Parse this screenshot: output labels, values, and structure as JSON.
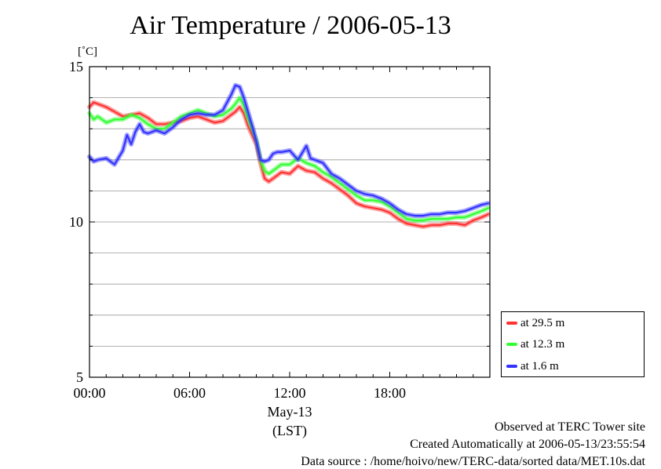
{
  "chart_data": {
    "type": "line",
    "title": "Air Temperature / 2006-05-13",
    "ylabel": "[˚C]",
    "xlabel": "(LST)",
    "date_label": "May-13",
    "ylim": [
      5,
      15
    ],
    "xlim_hours": [
      0,
      24
    ],
    "y_ticks": [
      "5",
      "10",
      "15"
    ],
    "x_ticks": [
      "00:00",
      "06:00",
      "12:00",
      "18:00"
    ],
    "grid": true,
    "legend_position": "lower-right-outside",
    "series": [
      {
        "name": "at 29.5 m",
        "color": "#ff3333",
        "x": [
          0,
          0.25,
          0.5,
          1.0,
          1.5,
          2.0,
          2.5,
          3.0,
          3.5,
          4.0,
          4.5,
          5.0,
          5.5,
          6.0,
          6.5,
          7.0,
          7.5,
          8.0,
          8.5,
          8.75,
          9.0,
          9.25,
          9.5,
          9.75,
          10.0,
          10.25,
          10.5,
          10.75,
          11.0,
          11.25,
          11.5,
          12.0,
          12.5,
          13.0,
          13.5,
          14.0,
          14.5,
          15.0,
          15.5,
          16.0,
          16.5,
          17.0,
          17.5,
          18.0,
          18.5,
          19.0,
          19.5,
          20.0,
          20.5,
          21.0,
          21.5,
          22.0,
          22.5,
          23.0,
          23.5,
          23.9
        ],
        "values": [
          13.7,
          13.85,
          13.8,
          13.7,
          13.55,
          13.4,
          13.45,
          13.5,
          13.35,
          13.15,
          13.15,
          13.2,
          13.25,
          13.35,
          13.4,
          13.3,
          13.2,
          13.25,
          13.45,
          13.55,
          13.7,
          13.5,
          13.1,
          12.8,
          12.5,
          11.9,
          11.4,
          11.3,
          11.4,
          11.5,
          11.6,
          11.55,
          11.8,
          11.65,
          11.6,
          11.4,
          11.25,
          11.05,
          10.85,
          10.6,
          10.5,
          10.45,
          10.4,
          10.3,
          10.1,
          9.95,
          9.9,
          9.85,
          9.9,
          9.9,
          9.95,
          9.95,
          9.9,
          10.05,
          10.15,
          10.25
        ]
      },
      {
        "name": "at 12.3 m",
        "color": "#33ff33",
        "x": [
          0,
          0.25,
          0.5,
          1.0,
          1.5,
          2.0,
          2.5,
          3.0,
          3.5,
          4.0,
          4.5,
          5.0,
          5.5,
          6.0,
          6.5,
          7.0,
          7.5,
          8.0,
          8.5,
          8.75,
          9.0,
          9.25,
          9.5,
          9.75,
          10.0,
          10.25,
          10.5,
          10.75,
          11.0,
          11.25,
          11.5,
          12.0,
          12.5,
          13.0,
          13.5,
          14.0,
          14.5,
          15.0,
          15.5,
          16.0,
          16.5,
          17.0,
          17.5,
          18.0,
          18.5,
          19.0,
          19.5,
          20.0,
          20.5,
          21.0,
          21.5,
          22.0,
          22.5,
          23.0,
          23.5,
          23.9
        ],
        "values": [
          13.5,
          13.3,
          13.4,
          13.2,
          13.3,
          13.3,
          13.45,
          13.35,
          13.15,
          13.0,
          13.0,
          13.2,
          13.4,
          13.5,
          13.6,
          13.5,
          13.4,
          13.45,
          13.65,
          13.8,
          14.0,
          13.75,
          13.35,
          13.0,
          12.65,
          12.0,
          11.65,
          11.55,
          11.65,
          11.75,
          11.85,
          11.85,
          12.05,
          11.9,
          11.8,
          11.6,
          11.45,
          11.25,
          11.05,
          10.85,
          10.7,
          10.7,
          10.65,
          10.5,
          10.3,
          10.1,
          10.05,
          10.05,
          10.1,
          10.1,
          10.1,
          10.15,
          10.15,
          10.25,
          10.35,
          10.45
        ]
      },
      {
        "name": "at 1.6 m",
        "color": "#3333ff",
        "x": [
          0,
          0.25,
          0.5,
          1.0,
          1.5,
          2.0,
          2.25,
          2.5,
          2.75,
          3.0,
          3.25,
          3.5,
          4.0,
          4.5,
          5.0,
          5.5,
          6.0,
          6.5,
          7.0,
          7.5,
          8.0,
          8.5,
          8.75,
          9.0,
          9.25,
          9.5,
          9.75,
          10.0,
          10.25,
          10.5,
          10.75,
          11.0,
          11.25,
          11.5,
          12.0,
          12.5,
          13.0,
          13.25,
          13.5,
          14.0,
          14.5,
          15.0,
          15.5,
          16.0,
          16.5,
          17.0,
          17.5,
          18.0,
          18.5,
          19.0,
          19.5,
          20.0,
          20.5,
          21.0,
          21.5,
          22.0,
          22.5,
          23.0,
          23.5,
          23.9
        ],
        "values": [
          12.1,
          11.95,
          12.0,
          12.05,
          11.85,
          12.3,
          12.8,
          12.5,
          12.9,
          13.15,
          12.9,
          12.85,
          12.95,
          12.85,
          13.05,
          13.3,
          13.45,
          13.5,
          13.45,
          13.45,
          13.6,
          14.1,
          14.4,
          14.35,
          14.0,
          13.55,
          13.1,
          12.6,
          12.0,
          11.95,
          12.0,
          12.2,
          12.25,
          12.25,
          12.3,
          12.0,
          12.45,
          12.05,
          12.0,
          11.9,
          11.55,
          11.4,
          11.2,
          11.0,
          10.9,
          10.85,
          10.75,
          10.6,
          10.4,
          10.25,
          10.2,
          10.2,
          10.25,
          10.25,
          10.3,
          10.3,
          10.35,
          10.45,
          10.55,
          10.6
        ]
      }
    ]
  },
  "footer": {
    "site": "Observed at TERC Tower site",
    "created": "Created Automatically at 2006-05-13/23:55:54",
    "source": "Data source : /home/hoivo/new/TERC-data/sorted  data/MET.10s.dat"
  }
}
